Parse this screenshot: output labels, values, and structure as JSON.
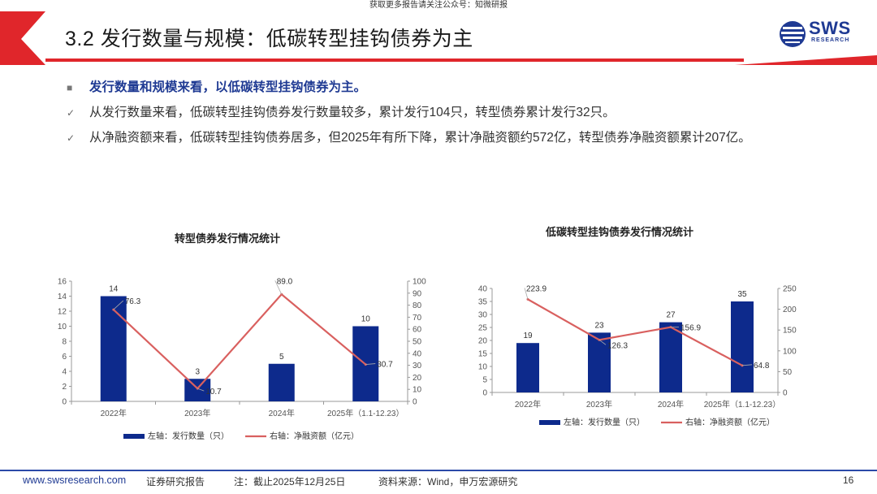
{
  "top_note": "获取更多报告请关注公众号：知微研报",
  "title": "3.2 发行数量与规模：低碳转型挂钩债券为主",
  "logo": {
    "word": "SWS",
    "sub": "RESEARCH"
  },
  "bullets": [
    {
      "mark": "■",
      "text": "发行数量和规模来看，以低碳转型挂钩债券为主。"
    },
    {
      "mark": "✓",
      "text": "从发行数量来看，低碳转型挂钩债券发行数量较多，累计发行104只，转型债券累计发行32只。"
    },
    {
      "mark": "✓",
      "text": "从净融资额来看，低碳转型挂钩债券居多，但2025年有所下降，累计净融资额约572亿，转型债券净融资额累计207亿。"
    }
  ],
  "colors": {
    "bar": "#0d2a8c",
    "line": "#d9605f",
    "accent": "#1f3a93",
    "banner_red": "#e0262b"
  },
  "chart_data": [
    {
      "type": "bar+line",
      "title": "转型债券发行情况统计",
      "categories": [
        "2022年",
        "2023年",
        "2024年",
        "2025年（1.1-12.23）"
      ],
      "series": [
        {
          "name": "左轴：发行数量（只）",
          "type": "bar",
          "axis": "left",
          "values": [
            14,
            3,
            5,
            10
          ]
        },
        {
          "name": "右轴：净融资额（亿元）",
          "type": "line",
          "axis": "right",
          "values": [
            76.3,
            10.7,
            89.0,
            30.7
          ]
        }
      ],
      "left_axis": {
        "ylim": [
          0,
          16
        ],
        "ticks": [
          "0",
          "2",
          "4",
          "6",
          "8",
          "10",
          "12",
          "14",
          "16"
        ]
      },
      "right_axis": {
        "ylim": [
          0,
          100
        ],
        "ticks": [
          "0",
          "10",
          "20",
          "30",
          "40",
          "50",
          "60",
          "70",
          "80",
          "90",
          "100"
        ]
      },
      "bar_labels": [
        "14",
        "3",
        "5",
        "10"
      ],
      "line_labels": [
        "76.3",
        "10.7",
        "89.0",
        "30.7"
      ],
      "legend_position": "bottom"
    },
    {
      "type": "bar+line",
      "title": "低碳转型挂钩债券发行情况统计",
      "categories": [
        "2022年",
        "2023年",
        "2024年",
        "2025年（1.1-12.23）"
      ],
      "series": [
        {
          "name": "左轴：发行数量（只）",
          "type": "bar",
          "axis": "left",
          "values": [
            19,
            23,
            27,
            35
          ]
        },
        {
          "name": "右轴：净融资额（亿元）",
          "type": "line",
          "axis": "right",
          "values": [
            223.9,
            126.3,
            156.9,
            64.8
          ]
        }
      ],
      "left_axis": {
        "ylim": [
          0,
          40
        ],
        "ticks": [
          "0",
          "5",
          "10",
          "15",
          "20",
          "25",
          "30",
          "35",
          "40"
        ]
      },
      "right_axis": {
        "ylim": [
          0,
          250
        ],
        "ticks": [
          "0",
          "50",
          "100",
          "150",
          "200",
          "250"
        ]
      },
      "bar_labels": [
        "19",
        "23",
        "27",
        "35"
      ],
      "line_labels": [
        "223.9",
        "126.3",
        "156.9",
        "64.8"
      ],
      "legend_position": "bottom"
    }
  ],
  "footer": {
    "url": "www.swsresearch.com",
    "report_type": "证券研究报告",
    "note": "注：截止2025年12月25日",
    "source": "资料来源：Wind，申万宏源研究",
    "page": "16"
  }
}
